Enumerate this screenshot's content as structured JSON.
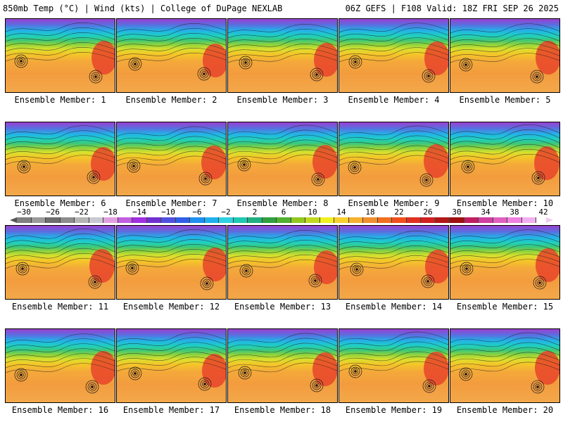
{
  "header": {
    "left": "850mb Temp (°C) | Wind (kts) | College of DuPage NEXLAB",
    "right": "06Z GEFS | F108 Valid: 18Z FRI SEP 26 2025"
  },
  "panels": [
    {
      "label": "Ensemble Member: 1"
    },
    {
      "label": "Ensemble Member: 2"
    },
    {
      "label": "Ensemble Member: 3"
    },
    {
      "label": "Ensemble Member: 4"
    },
    {
      "label": "Ensemble Member: 5"
    },
    {
      "label": "Ensemble Member: 6"
    },
    {
      "label": "Ensemble Member: 7"
    },
    {
      "label": "Ensemble Member: 8"
    },
    {
      "label": "Ensemble Member: 9"
    },
    {
      "label": "Ensemble Member: 10"
    },
    {
      "label": "Ensemble Member: 11"
    },
    {
      "label": "Ensemble Member: 12"
    },
    {
      "label": "Ensemble Member: 13"
    },
    {
      "label": "Ensemble Member: 14"
    },
    {
      "label": "Ensemble Member: 15"
    },
    {
      "label": "Ensemble Member: 16"
    },
    {
      "label": "Ensemble Member: 17"
    },
    {
      "label": "Ensemble Member: 18"
    },
    {
      "label": "Ensemble Member: 19"
    },
    {
      "label": "Ensemble Member: 20"
    }
  ],
  "colorbar": {
    "ticks": [
      "−30",
      "−26",
      "−22",
      "−18",
      "−14",
      "−10",
      "−6",
      "−2",
      "2",
      "6",
      "10",
      "14",
      "18",
      "22",
      "26",
      "30",
      "34",
      "38",
      "42"
    ],
    "colors": [
      "#808080",
      "#9a9a9a",
      "#6e6e6e",
      "#8c8c8c",
      "#b4b4b4",
      "#c8c8d0",
      "#e0a0e0",
      "#c060e0",
      "#a030e0",
      "#7030d0",
      "#5050e0",
      "#3060e8",
      "#2090f0",
      "#20b0f0",
      "#30d0e0",
      "#20c8b0",
      "#20b080",
      "#30a040",
      "#50b030",
      "#90c820",
      "#c0d820",
      "#f0f020",
      "#f8d030",
      "#f8b030",
      "#f09030",
      "#f07020",
      "#f05020",
      "#e03020",
      "#d02020",
      "#b01818",
      "#a01010",
      "#c02060",
      "#d040a0",
      "#e060c0",
      "#f080e0",
      "#f0b0f0"
    ]
  }
}
